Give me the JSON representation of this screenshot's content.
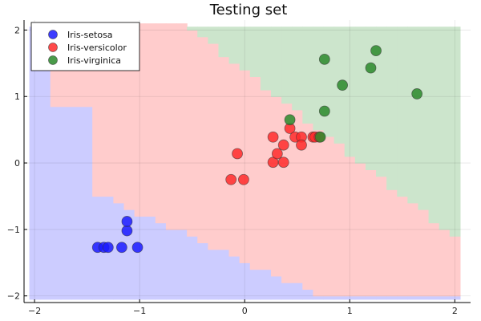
{
  "chart_data": {
    "type": "scatter",
    "title": "Testing set",
    "xlabel": "",
    "ylabel": "",
    "xlim": [
      -2.1,
      2.15
    ],
    "ylim": [
      -2.1,
      2.15
    ],
    "xticks": [
      -2,
      -1,
      0,
      1,
      2
    ],
    "yticks": [
      -2,
      -1,
      0,
      1,
      2
    ],
    "grid": true,
    "legend_position": "top-left",
    "region_colors": [
      "#ccccff",
      "#ffcccc",
      "#cce5cc"
    ],
    "series": [
      {
        "name": "Iris-setosa",
        "color": "#1a1aff",
        "points": [
          [
            -1.4,
            -1.27
          ],
          [
            -1.34,
            -1.27
          ],
          [
            -1.3,
            -1.27
          ],
          [
            -1.17,
            -1.27
          ],
          [
            -1.02,
            -1.27
          ],
          [
            -1.12,
            -1.02
          ],
          [
            -1.12,
            -0.88
          ]
        ]
      },
      {
        "name": "Iris-versicolor",
        "color": "#ff2a2a",
        "points": [
          [
            -0.13,
            -0.25
          ],
          [
            -0.01,
            -0.25
          ],
          [
            -0.07,
            0.14
          ],
          [
            0.27,
            0.39
          ],
          [
            0.27,
            0.01
          ],
          [
            0.31,
            0.14
          ],
          [
            0.37,
            0.01
          ],
          [
            0.37,
            0.27
          ],
          [
            0.43,
            0.52
          ],
          [
            0.48,
            0.39
          ],
          [
            0.54,
            0.39
          ],
          [
            0.54,
            0.27
          ],
          [
            0.65,
            0.39
          ],
          [
            0.67,
            0.39
          ],
          [
            0.71,
            0.39
          ]
        ]
      },
      {
        "name": "Iris-virginica",
        "color": "#2a8a2a",
        "points": [
          [
            0.43,
            0.65
          ],
          [
            0.72,
            0.39
          ],
          [
            0.76,
            0.78
          ],
          [
            0.76,
            1.56
          ],
          [
            0.93,
            1.17
          ],
          [
            1.2,
            1.43
          ],
          [
            1.25,
            1.69
          ],
          [
            1.64,
            1.04
          ]
        ]
      }
    ]
  }
}
